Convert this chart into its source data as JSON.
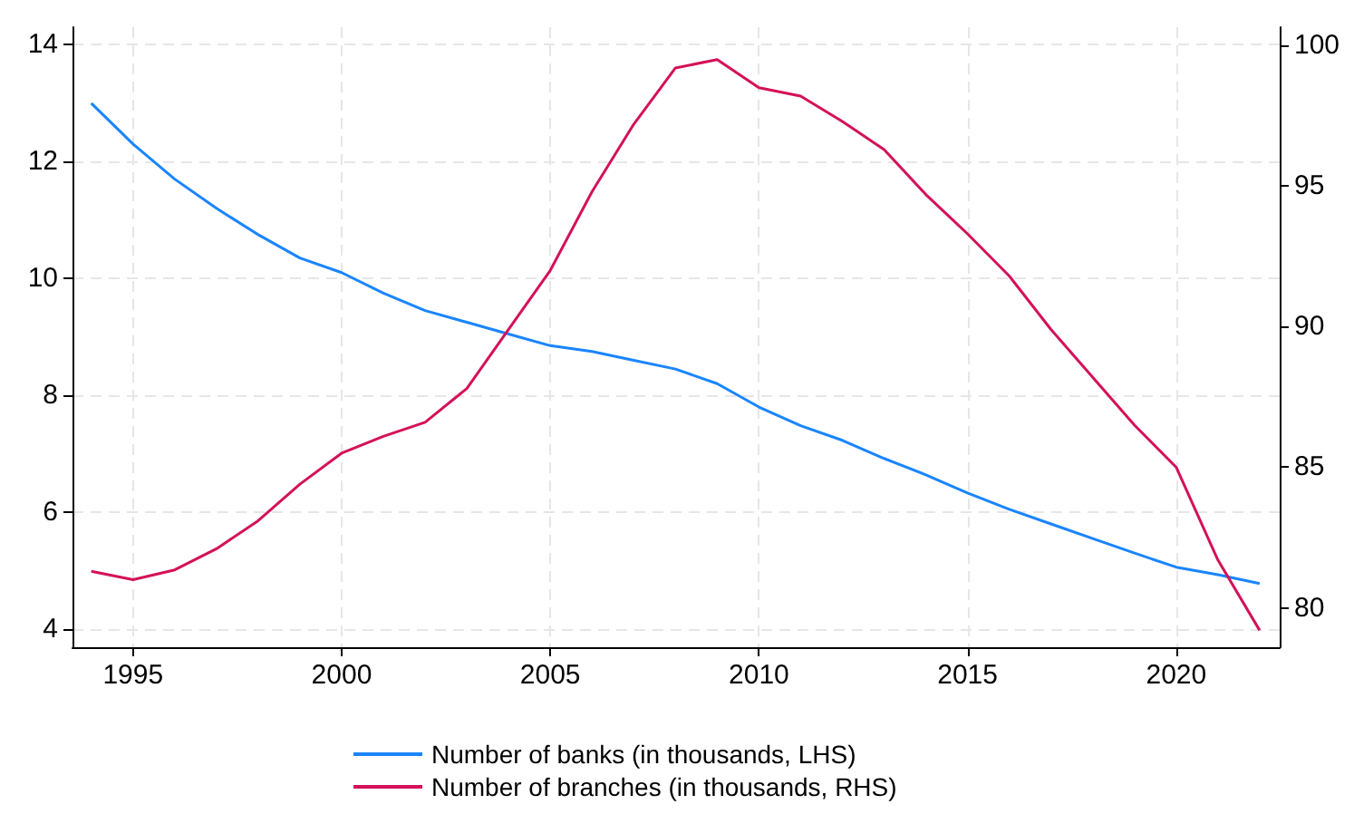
{
  "chart_data": {
    "type": "line",
    "x": [
      1994,
      1995,
      1996,
      1997,
      1998,
      1999,
      2000,
      2001,
      2002,
      2003,
      2004,
      2005,
      2006,
      2007,
      2008,
      2009,
      2010,
      2011,
      2012,
      2013,
      2014,
      2015,
      2016,
      2017,
      2018,
      2019,
      2020,
      2021,
      2022
    ],
    "series": [
      {
        "name": "Number of banks (in thousands, LHS)",
        "color": "#1a85ff",
        "values": [
          13.0,
          12.3,
          11.7,
          11.2,
          10.75,
          10.35,
          10.1,
          9.75,
          9.45,
          9.25,
          9.05,
          8.85,
          8.75,
          8.6,
          8.45,
          8.2,
          7.8,
          7.48,
          7.23,
          6.92,
          6.64,
          6.33,
          6.05,
          5.8,
          5.55,
          5.3,
          5.06,
          4.93,
          4.78
        ]
      },
      {
        "name": "Number of branches (in thousands, RHS)",
        "color": "#d41159",
        "axis": "y2",
        "values": [
          81.3,
          81.0,
          81.35,
          82.1,
          83.1,
          84.4,
          85.5,
          86.1,
          86.6,
          87.8,
          89.9,
          92.0,
          94.8,
          97.2,
          99.2,
          99.5,
          98.5,
          98.2,
          97.3,
          96.3,
          94.7,
          93.3,
          91.8,
          89.9,
          88.2,
          86.5,
          85.0,
          81.7,
          79.2
        ]
      }
    ],
    "xlim": [
      1993.55,
      2022.48
    ],
    "xticks": [
      1995,
      2000,
      2005,
      2010,
      2015,
      2020
    ],
    "ylim": [
      3.69,
      14.3
    ],
    "yticks": [
      4,
      6,
      8,
      10,
      12,
      14
    ],
    "y2lim": [
      78.6,
      100.65
    ],
    "y2ticks": [
      80,
      85,
      90,
      95,
      100
    ],
    "grid": true,
    "legend": "bottom",
    "marker": "none",
    "line_style": "solid"
  }
}
